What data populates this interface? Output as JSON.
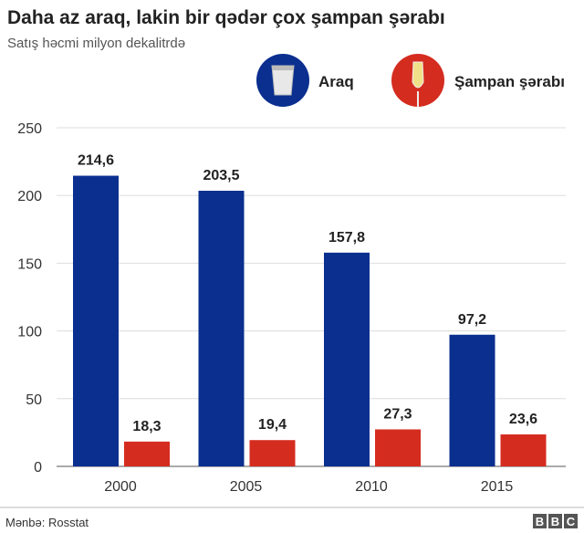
{
  "chart_data": {
    "type": "bar",
    "title": "Daha az araq, lakin bir qədər çox şampan şərabı",
    "subtitle": "Satış həcmi milyon dekalitrdə",
    "categories": [
      "2000",
      "2005",
      "2010",
      "2015"
    ],
    "series": [
      {
        "name": "Araq",
        "color": "#0a2f8f",
        "icon": "vodka-glass-icon",
        "values": [
          214.6,
          203.5,
          157.8,
          97.2
        ],
        "labels": [
          "214,6",
          "203,5",
          "157,8",
          "97,2"
        ]
      },
      {
        "name": "Şampan şərabı",
        "color": "#d52c20",
        "icon": "champagne-glass-icon",
        "values": [
          18.3,
          19.4,
          27.3,
          23.6
        ],
        "labels": [
          "18,3",
          "19,4",
          "27,3",
          "23,6"
        ]
      }
    ],
    "ylim": [
      0,
      250
    ],
    "yticks": [
      "0",
      "50",
      "100",
      "150",
      "200",
      "250"
    ],
    "grid": true,
    "legend": "top-right",
    "source": "Mənbə: Rosstat",
    "logo": "BBC"
  }
}
